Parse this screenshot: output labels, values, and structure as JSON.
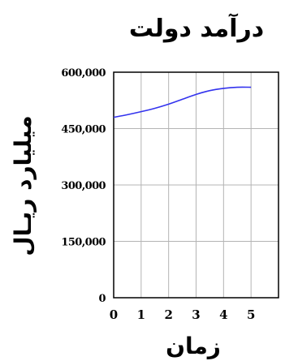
{
  "chart_data": {
    "type": "line",
    "title": "درآمد دولت",
    "xlabel": "زمان",
    "ylabel": "میلیارد ریـال",
    "x": [
      0,
      0.5,
      1,
      1.5,
      2,
      2.5,
      3,
      3.5,
      4,
      4.5,
      5
    ],
    "series": [
      {
        "values": [
          480000,
          487000,
          495000,
          504000,
          515000,
          528000,
          541000,
          551000,
          557000,
          560000,
          560000
        ],
        "color": "#3333ee"
      }
    ],
    "xlim": [
      0,
      6
    ],
    "ylim": [
      0,
      600000
    ],
    "xticks": [
      "0",
      "1",
      "2",
      "3",
      "4",
      "5"
    ],
    "yticks": [
      "0",
      "150,000",
      "300,000",
      "450,000",
      "600,000"
    ],
    "grid": true
  }
}
